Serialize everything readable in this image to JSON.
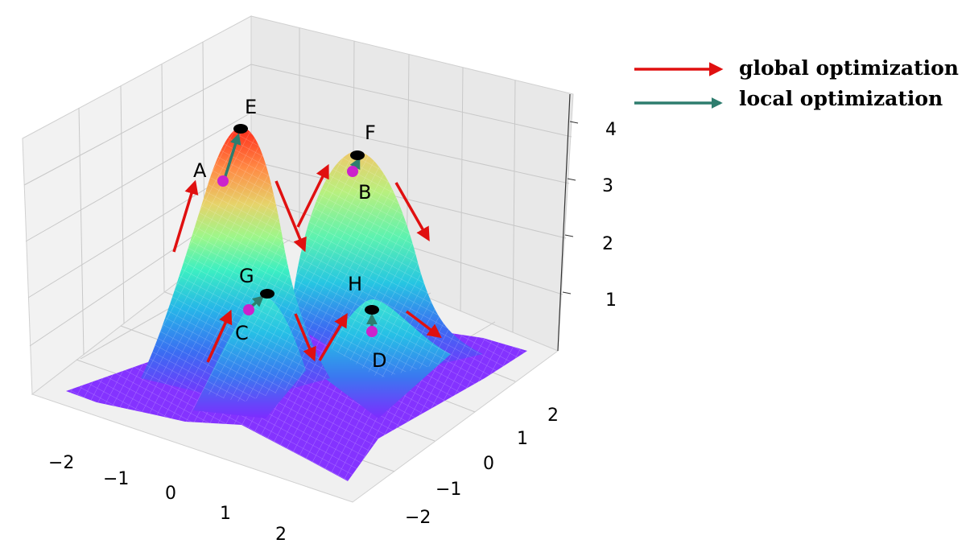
{
  "legend": {
    "global_label": "global optimization",
    "local_label": "local optimization",
    "global_color": "#e01010",
    "local_color": "#2e7d6e"
  },
  "axes": {
    "x_ticks": [
      "−2",
      "−1",
      "0",
      "1",
      "2"
    ],
    "y_ticks": [
      "−2",
      "−1",
      "0",
      "1",
      "2"
    ],
    "z_ticks": [
      "1",
      "2",
      "3",
      "4"
    ]
  },
  "points": {
    "A": "A",
    "B": "B",
    "C": "C",
    "D": "D",
    "E": "E",
    "F": "F",
    "G": "G",
    "H": "H"
  },
  "colors": {
    "start_point": "#cc22cc",
    "end_point": "#000000",
    "surface_colormap": "rainbow"
  }
}
